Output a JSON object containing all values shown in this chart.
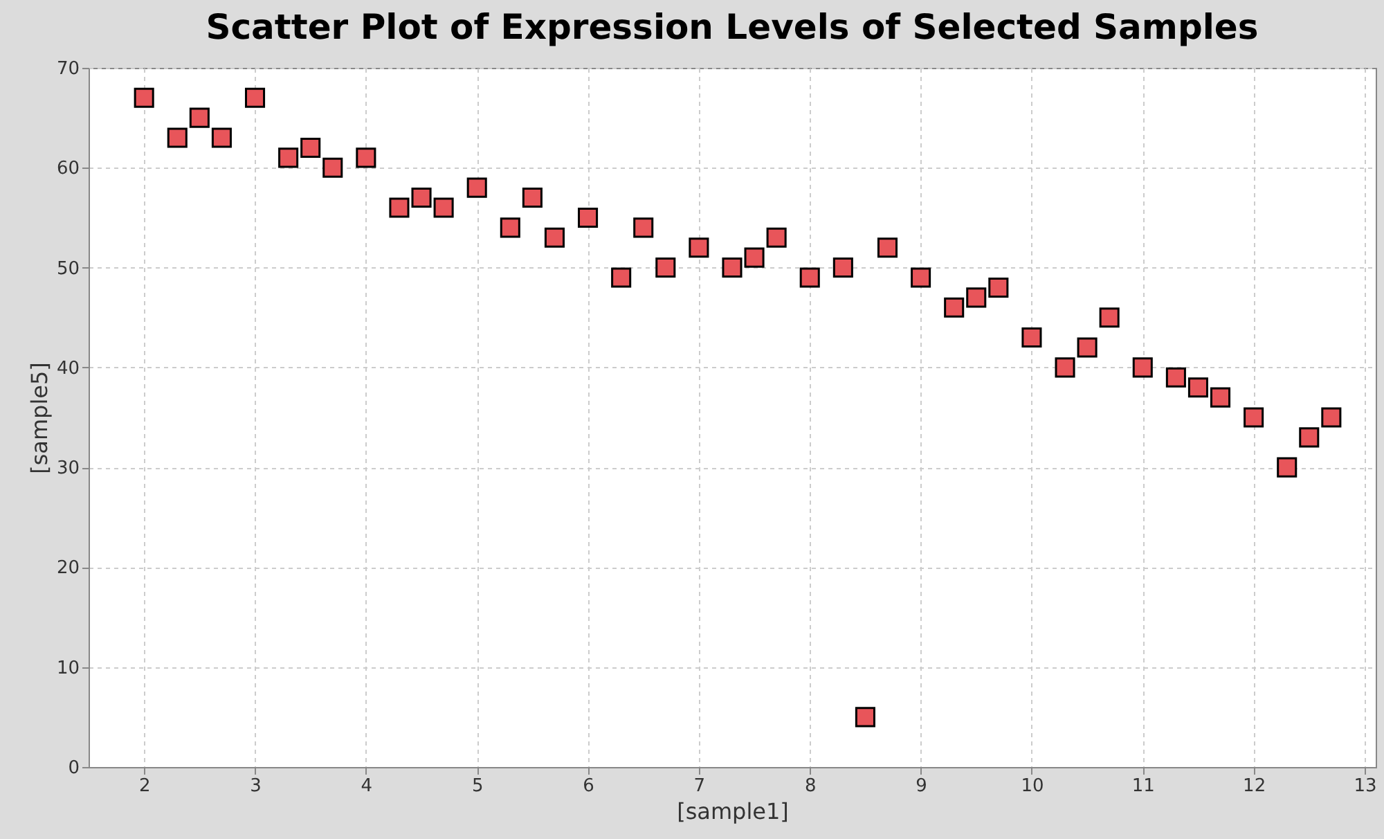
{
  "chart_data": {
    "type": "scatter",
    "title": "Scatter Plot of Expression Levels of Selected Samples",
    "xlabel": "[sample1]",
    "ylabel": "[sample5]",
    "x": [
      2,
      2.3,
      2.5,
      2.7,
      3,
      3.3,
      3.5,
      3.7,
      4,
      4.3,
      4.5,
      4.7,
      5,
      5.3,
      5.5,
      5.7,
      6,
      6.3,
      6.5,
      6.7,
      7,
      7.3,
      7.5,
      7.7,
      8,
      8.3,
      8.5,
      8.7,
      9,
      9.3,
      9.5,
      9.7,
      10,
      10.3,
      10.5,
      10.7,
      11,
      11.3,
      11.5,
      11.7,
      12,
      12.3,
      12.5,
      12.7
    ],
    "series": [
      {
        "color": "#e8555a",
        "values": [
          67,
          63,
          65,
          63,
          67,
          61,
          62,
          60,
          61,
          56,
          57,
          56,
          58,
          54,
          57,
          53,
          55,
          49,
          54,
          50,
          52,
          50,
          51,
          53,
          49,
          50,
          5,
          52,
          49,
          46,
          47,
          48,
          43,
          40,
          42,
          45,
          40,
          39,
          38,
          37,
          35,
          30,
          33,
          35
        ]
      }
    ],
    "xlim": [
      1.5,
      13.1
    ],
    "xticks": [
      2,
      3,
      4,
      5,
      6,
      7,
      8,
      9,
      10,
      11,
      12,
      13
    ],
    "ylim": [
      0,
      70
    ],
    "yticks": [
      0,
      10,
      20,
      30,
      40,
      50,
      60,
      70
    ],
    "grid": true,
    "marker": "square"
  }
}
